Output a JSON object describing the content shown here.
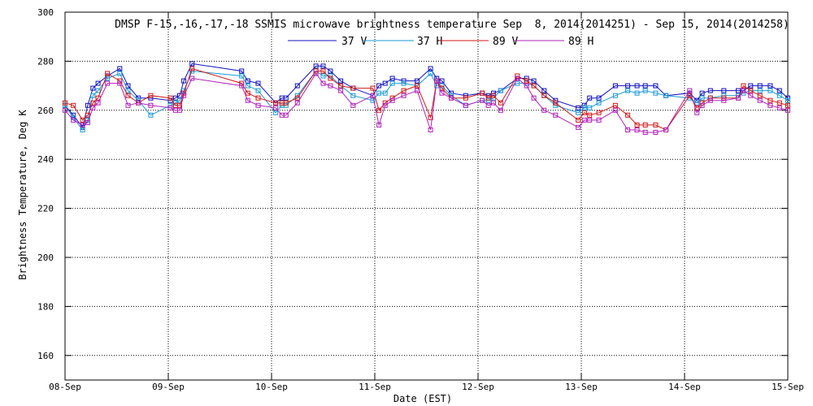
{
  "chart_data": {
    "type": "line",
    "title": "DMSP F-15,-16,-17,-18 SSMIS microwave brightness temperature Sep  8, 2014(2014251) - Sep 15, 2014(2014258)",
    "xlabel": "Date (EST)",
    "ylabel": "Brightness Temperature, Deg K",
    "ylim": [
      150,
      300
    ],
    "xlim": [
      0,
      7
    ],
    "grid": true,
    "legend_position": "top",
    "y_ticks": [
      160,
      180,
      200,
      220,
      240,
      260,
      280,
      300
    ],
    "x_ticks": [
      {
        "label": "08-Sep",
        "value": 0
      },
      {
        "label": "09-Sep",
        "value": 1
      },
      {
        "label": "10-Sep",
        "value": 2
      },
      {
        "label": "11-Sep",
        "value": 3
      },
      {
        "label": "12-Sep",
        "value": 4
      },
      {
        "label": "13-Sep",
        "value": 5
      },
      {
        "label": "14-Sep",
        "value": 6
      },
      {
        "label": "15-Sep",
        "value": 7
      }
    ],
    "series": [
      {
        "name": "37 V",
        "color": "#1010c0",
        "x": [
          0.0,
          0.08,
          0.17,
          0.22,
          0.27,
          0.32,
          0.41,
          0.53,
          0.61,
          0.71,
          0.83,
          1.02,
          1.07,
          1.11,
          1.15,
          1.23,
          1.71,
          1.77,
          1.87,
          2.04,
          2.1,
          2.14,
          2.25,
          2.43,
          2.5,
          2.57,
          2.67,
          2.79,
          2.98,
          3.04,
          3.1,
          3.17,
          3.28,
          3.41,
          3.54,
          3.6,
          3.65,
          3.74,
          3.88,
          4.04,
          4.1,
          4.15,
          4.22,
          4.38,
          4.47,
          4.54,
          4.64,
          4.75,
          4.97,
          5.03,
          5.08,
          5.17,
          5.33,
          5.45,
          5.54,
          5.62,
          5.72,
          5.82,
          6.05,
          6.12,
          6.17,
          6.25,
          6.38,
          6.52,
          6.57,
          6.64,
          6.73,
          6.83,
          6.92,
          7.0
        ],
        "values": [
          262,
          258,
          253,
          262,
          269,
          271,
          274,
          277,
          270,
          265,
          265,
          264,
          265,
          266,
          272,
          279,
          276,
          272,
          271,
          263,
          265,
          265,
          270,
          278,
          278,
          276,
          272,
          269,
          266,
          270,
          271,
          273,
          272,
          272,
          277,
          273,
          272,
          267,
          266,
          267,
          266,
          267,
          268,
          273,
          273,
          272,
          268,
          264,
          261,
          262,
          265,
          265,
          270,
          270,
          270,
          270,
          270,
          266,
          267,
          264,
          267,
          268,
          268,
          268,
          268,
          270,
          270,
          270,
          268,
          265
        ]
      },
      {
        "name": "37 H",
        "color": "#1a9ad6",
        "x": [
          0.0,
          0.08,
          0.17,
          0.22,
          0.27,
          0.32,
          0.41,
          0.53,
          0.61,
          0.71,
          0.83,
          1.02,
          1.07,
          1.11,
          1.15,
          1.23,
          1.71,
          1.77,
          1.87,
          2.04,
          2.1,
          2.14,
          2.25,
          2.43,
          2.5,
          2.57,
          2.67,
          2.79,
          2.98,
          3.04,
          3.1,
          3.17,
          3.28,
          3.41,
          3.54,
          3.6,
          3.65,
          3.74,
          3.88,
          4.04,
          4.1,
          4.15,
          4.22,
          4.38,
          4.47,
          4.54,
          4.64,
          4.75,
          4.97,
          5.03,
          5.08,
          5.17,
          5.33,
          5.45,
          5.54,
          5.62,
          5.72,
          5.82,
          6.05,
          6.12,
          6.17,
          6.25,
          6.38,
          6.52,
          6.57,
          6.64,
          6.73,
          6.83,
          6.92,
          7.0
        ],
        "values": [
          262,
          257,
          252,
          256,
          266,
          268,
          273,
          275,
          268,
          264,
          258,
          262,
          263,
          264,
          268,
          276,
          274,
          270,
          268,
          259,
          262,
          262,
          266,
          276,
          274,
          274,
          270,
          266,
          264,
          267,
          267,
          271,
          271,
          270,
          275,
          270,
          270,
          266,
          262,
          264,
          264,
          265,
          268,
          271,
          271,
          270,
          266,
          262,
          259,
          261,
          261,
          263,
          266,
          268,
          267,
          268,
          267,
          266,
          265,
          263,
          265,
          265,
          266,
          266,
          267,
          268,
          268,
          268,
          266,
          264
        ]
      },
      {
        "name": "89 V",
        "color": "#d01818",
        "x": [
          0.0,
          0.08,
          0.17,
          0.22,
          0.27,
          0.32,
          0.41,
          0.53,
          0.61,
          0.71,
          0.83,
          1.02,
          1.07,
          1.11,
          1.15,
          1.23,
          1.71,
          1.77,
          1.87,
          2.04,
          2.1,
          2.14,
          2.25,
          2.43,
          2.5,
          2.57,
          2.67,
          2.79,
          2.98,
          3.04,
          3.1,
          3.17,
          3.28,
          3.41,
          3.54,
          3.6,
          3.65,
          3.74,
          3.88,
          4.04,
          4.1,
          4.15,
          4.22,
          4.38,
          4.47,
          4.54,
          4.64,
          4.75,
          4.97,
          5.03,
          5.08,
          5.17,
          5.33,
          5.45,
          5.54,
          5.62,
          5.72,
          5.82,
          6.05,
          6.12,
          6.17,
          6.25,
          6.38,
          6.52,
          6.57,
          6.64,
          6.73,
          6.83,
          6.92,
          7.0
        ],
        "values": [
          263,
          262,
          256,
          258,
          263,
          265,
          275,
          272,
          266,
          263,
          266,
          265,
          262,
          262,
          267,
          277,
          271,
          267,
          265,
          263,
          263,
          263,
          265,
          276,
          276,
          273,
          270,
          269,
          269,
          260,
          263,
          265,
          268,
          270,
          257,
          272,
          269,
          265,
          265,
          267,
          265,
          266,
          263,
          274,
          272,
          270,
          266,
          263,
          256,
          259,
          258,
          259,
          262,
          258,
          254,
          254,
          254,
          252,
          266,
          261,
          263,
          265,
          265,
          265,
          270,
          268,
          266,
          264,
          263,
          262
        ]
      },
      {
        "name": "89 H",
        "color": "#b020b8",
        "x": [
          0.0,
          0.08,
          0.17,
          0.22,
          0.27,
          0.32,
          0.41,
          0.53,
          0.61,
          0.71,
          0.83,
          1.02,
          1.07,
          1.11,
          1.15,
          1.23,
          1.71,
          1.77,
          1.87,
          2.04,
          2.1,
          2.14,
          2.25,
          2.43,
          2.5,
          2.57,
          2.67,
          2.79,
          2.98,
          3.04,
          3.1,
          3.17,
          3.28,
          3.41,
          3.54,
          3.6,
          3.65,
          3.74,
          3.88,
          4.04,
          4.1,
          4.15,
          4.22,
          4.38,
          4.47,
          4.54,
          4.64,
          4.75,
          4.97,
          5.03,
          5.08,
          5.17,
          5.33,
          5.45,
          5.54,
          5.62,
          5.72,
          5.82,
          6.05,
          6.12,
          6.17,
          6.25,
          6.38,
          6.52,
          6.57,
          6.64,
          6.73,
          6.83,
          6.92,
          7.0
        ],
        "values": [
          260,
          256,
          254,
          255,
          261,
          263,
          271,
          271,
          262,
          263,
          262,
          261,
          260,
          260,
          266,
          273,
          270,
          264,
          262,
          261,
          258,
          258,
          263,
          275,
          271,
          270,
          268,
          262,
          266,
          254,
          262,
          264,
          266,
          268,
          252,
          272,
          267,
          265,
          262,
          264,
          262,
          263,
          260,
          273,
          270,
          265,
          260,
          258,
          253,
          256,
          256,
          256,
          260,
          252,
          252,
          251,
          251,
          252,
          268,
          259,
          262,
          264,
          264,
          265,
          268,
          266,
          264,
          262,
          261,
          260
        ]
      }
    ]
  }
}
